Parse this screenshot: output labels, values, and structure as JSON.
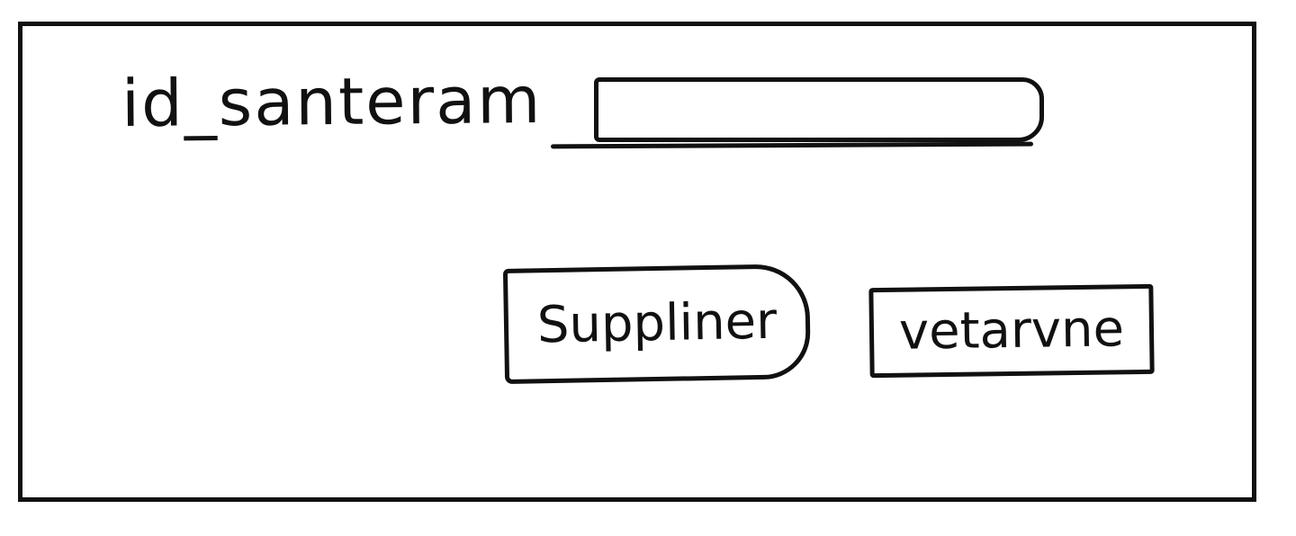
{
  "form": {
    "field_label": "id_santeram",
    "field_value": "",
    "save_label": "Suppliner",
    "back_label": "vetarvne"
  }
}
